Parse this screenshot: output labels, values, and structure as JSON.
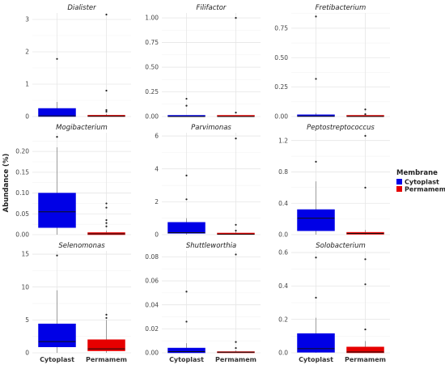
{
  "chart_data": {
    "type": "boxplot",
    "ylabel": "Abundance (%)",
    "legend": {
      "title": "Membrane",
      "position": "right",
      "entries": [
        {
          "name": "Cytoplast",
          "color": "#0000e6"
        },
        {
          "name": "Permamem",
          "color": "#e60000"
        }
      ]
    },
    "categories": [
      "Cytoplast",
      "Permamem"
    ],
    "grid": true,
    "facets": [
      {
        "title": "Dialister",
        "ylim": [
          0,
          3.2
        ],
        "yticks": [
          0,
          1,
          2,
          3
        ],
        "yticklabels": [
          "0",
          "1",
          "2",
          "3"
        ],
        "boxes": [
          {
            "category": "Cytoplast",
            "min": 0,
            "q1": 0,
            "median": 0.02,
            "q3": 0.25,
            "max": 0.45,
            "outliers": [
              1.78
            ]
          },
          {
            "category": "Permamem",
            "min": 0,
            "q1": 0,
            "median": 0.01,
            "q3": 0.04,
            "max": 0.08,
            "outliers": [
              0.15,
              0.2,
              0.8,
              3.15
            ]
          }
        ]
      },
      {
        "title": "Filifactor",
        "ylim": [
          0,
          1.05
        ],
        "yticks": [
          0,
          0.25,
          0.5,
          0.75,
          1.0
        ],
        "yticklabels": [
          "0.00",
          "0.25",
          "0.50",
          "0.75",
          "1.00"
        ],
        "boxes": [
          {
            "category": "Cytoplast",
            "min": 0,
            "q1": 0,
            "median": 0,
            "q3": 0.003,
            "max": 0.006,
            "outliers": [
              0.11,
              0.18
            ]
          },
          {
            "category": "Permamem",
            "min": 0,
            "q1": 0,
            "median": 0,
            "q3": 0.002,
            "max": 0.004,
            "outliers": [
              0.04,
              1.0
            ]
          }
        ]
      },
      {
        "title": "Fretibacterium",
        "ylim": [
          0,
          0.88
        ],
        "yticks": [
          0,
          0.25,
          0.5,
          0.75
        ],
        "yticklabels": [
          "0.00",
          "0.25",
          "0.50",
          "0.75"
        ],
        "boxes": [
          {
            "category": "Cytoplast",
            "min": 0,
            "q1": 0,
            "median": 0.003,
            "q3": 0.015,
            "max": 0.03,
            "outliers": [
              0.32,
              0.85
            ]
          },
          {
            "category": "Permamem",
            "min": 0,
            "q1": 0,
            "median": 0.001,
            "q3": 0.004,
            "max": 0.008,
            "outliers": [
              0.02,
              0.06
            ]
          }
        ]
      },
      {
        "title": "Mogibacterium",
        "ylim": [
          0,
          0.245
        ],
        "yticks": [
          0,
          0.05,
          0.1,
          0.15,
          0.2
        ],
        "yticklabels": [
          "0.00",
          "0.05",
          "0.10",
          "0.15",
          "0.20"
        ],
        "boxes": [
          {
            "category": "Cytoplast",
            "min": 0,
            "q1": 0.017,
            "median": 0.055,
            "q3": 0.1,
            "max": 0.21,
            "outliers": [
              0.235
            ]
          },
          {
            "category": "Permamem",
            "min": 0,
            "q1": 0,
            "median": 0.002,
            "q3": 0.005,
            "max": 0.01,
            "outliers": [
              0.02,
              0.028,
              0.035,
              0.065,
              0.075
            ]
          }
        ]
      },
      {
        "title": "Parvimonas",
        "ylim": [
          0,
          6.2
        ],
        "yticks": [
          0,
          2,
          4,
          6
        ],
        "yticklabels": [
          "0",
          "2",
          "4",
          "6"
        ],
        "boxes": [
          {
            "category": "Cytoplast",
            "min": 0,
            "q1": 0.08,
            "median": 0.12,
            "q3": 0.75,
            "max": 1.0,
            "outliers": [
              2.15,
              3.6
            ]
          },
          {
            "category": "Permamem",
            "min": 0,
            "q1": 0.01,
            "median": 0.03,
            "q3": 0.1,
            "max": 0.2,
            "outliers": [
              0.25,
              0.6,
              5.85
            ]
          }
        ]
      },
      {
        "title": "Peptostreptococcus",
        "ylim": [
          0,
          1.3
        ],
        "yticks": [
          0,
          0.4,
          0.8,
          1.2
        ],
        "yticklabels": [
          "0.0",
          "0.4",
          "0.8",
          "1.2"
        ],
        "boxes": [
          {
            "category": "Cytoplast",
            "min": 0,
            "q1": 0.05,
            "median": 0.21,
            "q3": 0.32,
            "max": 0.68,
            "outliers": [
              0.93
            ]
          },
          {
            "category": "Permamem",
            "min": 0,
            "q1": 0.005,
            "median": 0.015,
            "q3": 0.03,
            "max": 0.06,
            "outliers": [
              0.6,
              1.26
            ]
          }
        ]
      },
      {
        "title": "Selenomonas",
        "ylim": [
          0,
          15.5
        ],
        "yticks": [
          0,
          5,
          10,
          15
        ],
        "yticklabels": [
          "0",
          "5",
          "10",
          "15"
        ],
        "boxes": [
          {
            "category": "Cytoplast",
            "min": 0,
            "q1": 0.9,
            "median": 1.7,
            "q3": 4.4,
            "max": 9.5,
            "outliers": [
              14.8
            ]
          },
          {
            "category": "Permamem",
            "min": 0,
            "q1": 0.3,
            "median": 0.6,
            "q3": 2.0,
            "max": 5.0,
            "outliers": [
              5.3,
              5.8
            ]
          }
        ]
      },
      {
        "title": "Shuttleworthia",
        "ylim": [
          0,
          0.085
        ],
        "yticks": [
          0,
          0.02,
          0.04,
          0.06,
          0.08
        ],
        "yticklabels": [
          "0.00",
          "0.02",
          "0.04",
          "0.06",
          "0.08"
        ],
        "boxes": [
          {
            "category": "Cytoplast",
            "min": 0,
            "q1": 0,
            "median": 0.001,
            "q3": 0.004,
            "max": 0.008,
            "outliers": [
              0.026,
              0.051
            ]
          },
          {
            "category": "Permamem",
            "min": 0,
            "q1": 0,
            "median": 0.0005,
            "q3": 0.001,
            "max": 0.002,
            "outliers": [
              0.004,
              0.009,
              0.082
            ]
          }
        ]
      },
      {
        "title": "Solobacterium",
        "ylim": [
          0,
          0.61
        ],
        "yticks": [
          0,
          0.2,
          0.4,
          0.6
        ],
        "yticklabels": [
          "0.0",
          "0.2",
          "0.4",
          "0.6"
        ],
        "boxes": [
          {
            "category": "Cytoplast",
            "min": 0,
            "q1": 0.003,
            "median": 0.025,
            "q3": 0.115,
            "max": 0.21,
            "outliers": [
              0.33,
              0.57
            ]
          },
          {
            "category": "Permamem",
            "min": 0,
            "q1": 0,
            "median": 0.005,
            "q3": 0.035,
            "max": 0.07,
            "outliers": [
              0.14,
              0.41,
              0.56
            ]
          }
        ]
      }
    ]
  }
}
